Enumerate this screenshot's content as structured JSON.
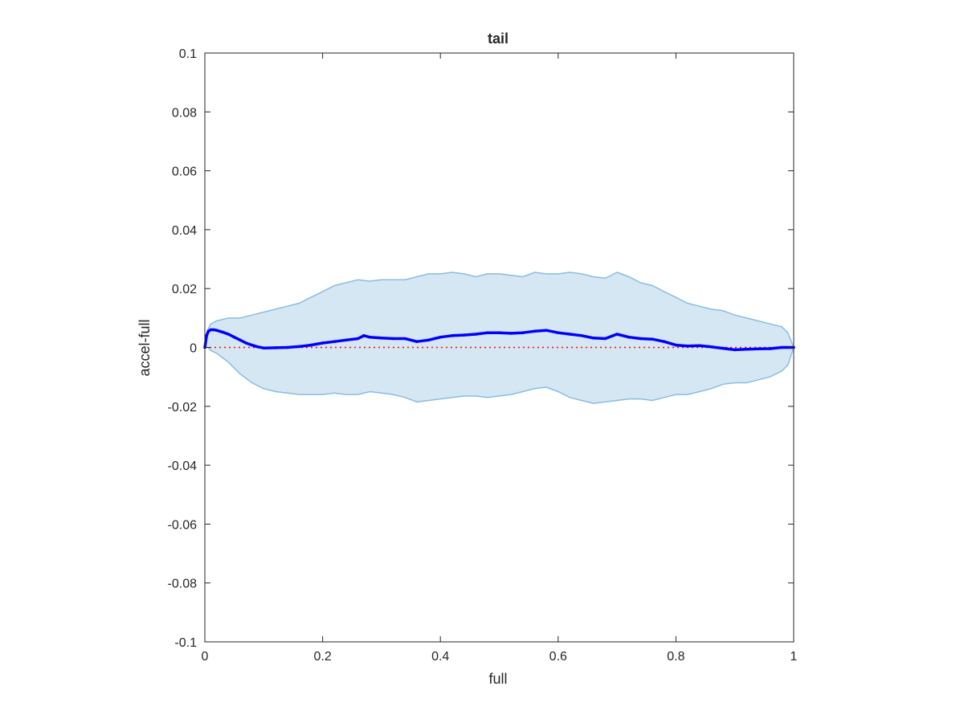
{
  "chart_data": {
    "type": "line",
    "title": "tail",
    "xlabel": "full",
    "ylabel": "accel-full",
    "xlim": [
      0,
      1
    ],
    "ylim": [
      -0.1,
      0.1
    ],
    "xticks": [
      0,
      0.2,
      0.4,
      0.6,
      0.8,
      1
    ],
    "xtick_labels": [
      "0",
      "0.2",
      "0.4",
      "0.6",
      "0.8",
      "1"
    ],
    "yticks": [
      -0.1,
      -0.08,
      -0.06,
      -0.04,
      -0.02,
      0,
      0.02,
      0.04,
      0.06,
      0.08,
      0.1
    ],
    "ytick_labels": [
      "-0.1",
      "-0.08",
      "-0.06",
      "-0.04",
      "-0.02",
      "0",
      "0.02",
      "0.04",
      "0.06",
      "0.08",
      "0.1"
    ],
    "grid": false,
    "box": true,
    "band": {
      "fill_color": "#d6e7f4",
      "edge_color": "#88bde0",
      "upper": {
        "x": [
          0,
          0.005,
          0.01,
          0.02,
          0.04,
          0.06,
          0.08,
          0.1,
          0.12,
          0.14,
          0.16,
          0.18,
          0.2,
          0.22,
          0.24,
          0.26,
          0.28,
          0.3,
          0.32,
          0.34,
          0.36,
          0.38,
          0.4,
          0.42,
          0.44,
          0.46,
          0.48,
          0.5,
          0.52,
          0.54,
          0.56,
          0.58,
          0.6,
          0.62,
          0.64,
          0.66,
          0.68,
          0.7,
          0.72,
          0.74,
          0.76,
          0.78,
          0.8,
          0.82,
          0.84,
          0.86,
          0.88,
          0.9,
          0.92,
          0.94,
          0.96,
          0.98,
          0.99,
          1.0
        ],
        "y": [
          0.001,
          0.006,
          0.008,
          0.009,
          0.01,
          0.01,
          0.011,
          0.012,
          0.013,
          0.014,
          0.015,
          0.017,
          0.019,
          0.021,
          0.022,
          0.023,
          0.0225,
          0.023,
          0.023,
          0.023,
          0.024,
          0.025,
          0.025,
          0.0255,
          0.025,
          0.024,
          0.025,
          0.025,
          0.0245,
          0.024,
          0.0255,
          0.025,
          0.025,
          0.0255,
          0.025,
          0.024,
          0.0235,
          0.0255,
          0.024,
          0.022,
          0.021,
          0.019,
          0.017,
          0.015,
          0.014,
          0.013,
          0.0125,
          0.011,
          0.01,
          0.009,
          0.008,
          0.007,
          0.005,
          0.0
        ]
      },
      "lower": {
        "x": [
          0,
          0.005,
          0.01,
          0.02,
          0.04,
          0.06,
          0.08,
          0.1,
          0.12,
          0.14,
          0.16,
          0.18,
          0.2,
          0.22,
          0.24,
          0.26,
          0.28,
          0.3,
          0.32,
          0.34,
          0.36,
          0.38,
          0.4,
          0.42,
          0.44,
          0.46,
          0.48,
          0.5,
          0.52,
          0.54,
          0.56,
          0.58,
          0.6,
          0.62,
          0.64,
          0.66,
          0.68,
          0.7,
          0.72,
          0.74,
          0.76,
          0.78,
          0.8,
          0.82,
          0.84,
          0.86,
          0.88,
          0.9,
          0.92,
          0.94,
          0.96,
          0.98,
          0.99,
          1.0
        ],
        "y": [
          0.0,
          0.0,
          -0.001,
          -0.002,
          -0.005,
          -0.009,
          -0.012,
          -0.014,
          -0.015,
          -0.0155,
          -0.016,
          -0.016,
          -0.016,
          -0.0155,
          -0.016,
          -0.016,
          -0.015,
          -0.0155,
          -0.016,
          -0.017,
          -0.0185,
          -0.018,
          -0.0175,
          -0.017,
          -0.0165,
          -0.0165,
          -0.017,
          -0.0165,
          -0.016,
          -0.015,
          -0.014,
          -0.0135,
          -0.015,
          -0.017,
          -0.018,
          -0.019,
          -0.0185,
          -0.018,
          -0.0175,
          -0.0175,
          -0.018,
          -0.017,
          -0.016,
          -0.016,
          -0.015,
          -0.014,
          -0.0125,
          -0.012,
          -0.012,
          -0.011,
          -0.01,
          -0.008,
          -0.006,
          0.0
        ]
      }
    },
    "series": [
      {
        "color": "#0000ff",
        "x": [
          0,
          0.003,
          0.006,
          0.01,
          0.015,
          0.02,
          0.03,
          0.04,
          0.05,
          0.06,
          0.07,
          0.08,
          0.09,
          0.1,
          0.12,
          0.14,
          0.16,
          0.18,
          0.2,
          0.22,
          0.24,
          0.26,
          0.27,
          0.28,
          0.3,
          0.32,
          0.34,
          0.36,
          0.38,
          0.4,
          0.42,
          0.44,
          0.46,
          0.48,
          0.5,
          0.52,
          0.54,
          0.56,
          0.58,
          0.6,
          0.62,
          0.64,
          0.66,
          0.68,
          0.7,
          0.72,
          0.74,
          0.76,
          0.78,
          0.8,
          0.82,
          0.84,
          0.86,
          0.88,
          0.9,
          0.92,
          0.94,
          0.96,
          0.98,
          1.0
        ],
        "y": [
          0.0,
          0.004,
          0.0055,
          0.006,
          0.006,
          0.0058,
          0.0052,
          0.0045,
          0.0035,
          0.0025,
          0.0015,
          0.0008,
          0.0002,
          -0.0002,
          -0.0001,
          0.0,
          0.0003,
          0.0008,
          0.0015,
          0.002,
          0.0025,
          0.003,
          0.004,
          0.0035,
          0.0032,
          0.003,
          0.003,
          0.002,
          0.0025,
          0.0035,
          0.004,
          0.0042,
          0.0045,
          0.005,
          0.005,
          0.0048,
          0.005,
          0.0055,
          0.0058,
          0.005,
          0.0045,
          0.004,
          0.0032,
          0.003,
          0.0045,
          0.0035,
          0.003,
          0.0028,
          0.002,
          0.0008,
          0.0005,
          0.0006,
          0.0002,
          -0.0003,
          -0.0008,
          -0.0006,
          -0.0005,
          -0.0004,
          0.0,
          0.0
        ]
      }
    ],
    "reference_line": {
      "y": 0,
      "color": "#ff0000",
      "style": "dotted"
    }
  }
}
